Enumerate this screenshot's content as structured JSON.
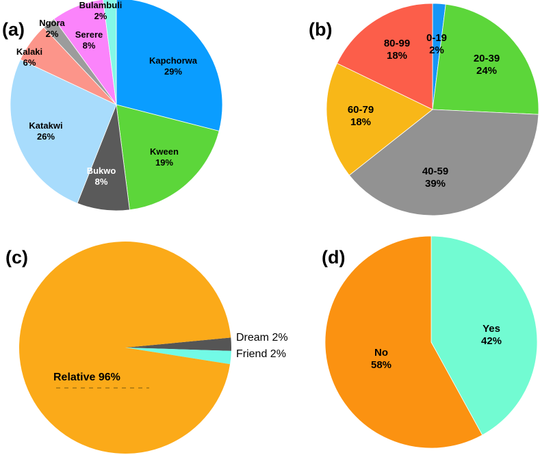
{
  "chart_data": [
    {
      "panel": "(a)",
      "type": "pie",
      "slices": [
        {
          "label": "Kapchorwa",
          "value": 29,
          "text": "29%",
          "color": "#0a9dff"
        },
        {
          "label": "Kween",
          "value": 19,
          "text": "19%",
          "color": "#5cd63a"
        },
        {
          "label": "Bukwo",
          "value": 8,
          "text": "8%",
          "color": "#5a5a5a"
        },
        {
          "label": "Katakwi",
          "value": 26,
          "text": "26%",
          "color": "#a8dcfc"
        },
        {
          "label": "Kalaki",
          "value": 6,
          "text": "6%",
          "color": "#fc958a"
        },
        {
          "label": "Ngora",
          "value": 2,
          "text": "2%",
          "color": "#9c9c9c"
        },
        {
          "label": "Serere",
          "value": 8,
          "text": "8%",
          "color": "#fb84fb"
        },
        {
          "label": "Bulambuli",
          "value": 2,
          "text": "2%",
          "color": "#84f8e6"
        }
      ]
    },
    {
      "panel": "(b)",
      "type": "pie",
      "slices": [
        {
          "label": "0-19",
          "value": 2,
          "text": "2%",
          "color": "#1596f5"
        },
        {
          "label": "20-39",
          "value": 24,
          "text": "24%",
          "color": "#5cd63a"
        },
        {
          "label": "40-59",
          "value": 39,
          "text": "39%",
          "color": "#929292"
        },
        {
          "label": "60-79",
          "value": 18,
          "text": "18%",
          "color": "#f8b718"
        },
        {
          "label": "80-99",
          "value": 18,
          "text": "18%",
          "color": "#fc5e4a"
        }
      ]
    },
    {
      "panel": "(c)",
      "type": "pie",
      "slices": [
        {
          "label": "Dream",
          "value": 2,
          "text": "Dream 2%",
          "color": "#555555"
        },
        {
          "label": "Friend",
          "value": 2,
          "text": "Friend 2%",
          "color": "#72fae6"
        },
        {
          "label": "Relative",
          "value": 96,
          "text": "Relative 96%",
          "color": "#fbaa19"
        }
      ]
    },
    {
      "panel": "(d)",
      "type": "pie",
      "slices": [
        {
          "label": "Yes",
          "value": 42,
          "text": "42%",
          "color": "#72fbd2"
        },
        {
          "label": "No",
          "value": 58,
          "text": "58%",
          "color": "#fb9211"
        }
      ]
    }
  ]
}
